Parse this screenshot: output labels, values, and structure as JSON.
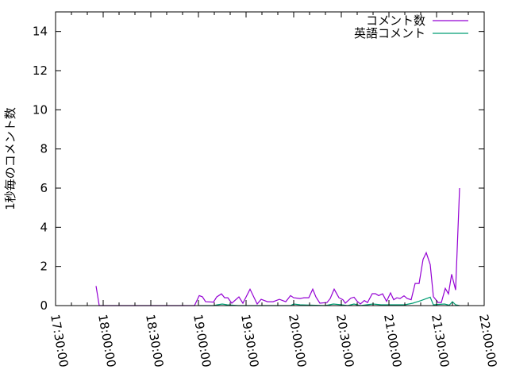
{
  "chart_data": {
    "type": "line",
    "title": "",
    "xlabel": "",
    "ylabel": "1秒毎のコメント数",
    "xlim": [
      "17:30:00",
      "22:00:00"
    ],
    "ylim": [
      0,
      15
    ],
    "xticks": [
      "17:30:00",
      "18:00:00",
      "18:30:00",
      "19:00:00",
      "19:30:00",
      "20:00:00",
      "20:30:00",
      "21:00:00",
      "21:30:00",
      "22:00:00"
    ],
    "yticks": [
      0,
      2,
      4,
      6,
      8,
      10,
      12,
      14
    ],
    "grid": false,
    "legend_position": "top-right",
    "series": [
      {
        "name": "コメント数",
        "color": "#9400d3",
        "points": [
          [
            "17:55:30",
            1.0
          ],
          [
            "17:57:30",
            0
          ],
          [
            "18:50:00",
            0
          ],
          [
            "18:57:30",
            0
          ],
          [
            "19:00:30",
            0.51
          ],
          [
            "19:02:30",
            0.45
          ],
          [
            "19:04:30",
            0.2
          ],
          [
            "19:09:30",
            0.18
          ],
          [
            "19:11:30",
            0.44
          ],
          [
            "19:14:30",
            0.6
          ],
          [
            "19:16:30",
            0.4
          ],
          [
            "19:18:30",
            0.4
          ],
          [
            "19:21:00",
            0.12
          ],
          [
            "19:25:30",
            0.44
          ],
          [
            "19:28:00",
            0.12
          ],
          [
            "19:32:30",
            0.84
          ],
          [
            "19:37:00",
            0.08
          ],
          [
            "19:39:30",
            0.32
          ],
          [
            "19:43:30",
            0.2
          ],
          [
            "19:47:00",
            0.2
          ],
          [
            "19:51:00",
            0.32
          ],
          [
            "19:55:00",
            0.2
          ],
          [
            "19:58:00",
            0.51
          ],
          [
            "20:00:00",
            0.4
          ],
          [
            "20:04:00",
            0.36
          ],
          [
            "20:06:30",
            0.4
          ],
          [
            "20:09:30",
            0.4
          ],
          [
            "20:12:00",
            0.84
          ],
          [
            "20:14:00",
            0.44
          ],
          [
            "20:16:30",
            0.12
          ],
          [
            "20:21:00",
            0.16
          ],
          [
            "20:23:00",
            0.36
          ],
          [
            "20:25:30",
            0.84
          ],
          [
            "20:28:30",
            0.4
          ],
          [
            "20:31:00",
            0.3
          ],
          [
            "20:32:30",
            0.12
          ],
          [
            "20:36:00",
            0.38
          ],
          [
            "20:38:00",
            0.43
          ],
          [
            "20:40:00",
            0.22
          ],
          [
            "20:42:00",
            0.08
          ],
          [
            "20:44:30",
            0.26
          ],
          [
            "20:46:30",
            0.16
          ],
          [
            "20:49:30",
            0.61
          ],
          [
            "20:51:30",
            0.61
          ],
          [
            "20:53:30",
            0.51
          ],
          [
            "20:56:00",
            0.6
          ],
          [
            "20:58:30",
            0.22
          ],
          [
            "21:01:00",
            0.65
          ],
          [
            "21:03:00",
            0.3
          ],
          [
            "21:05:00",
            0.4
          ],
          [
            "21:07:00",
            0.36
          ],
          [
            "21:09:30",
            0.5
          ],
          [
            "21:11:30",
            0.36
          ],
          [
            "21:14:00",
            0.3
          ],
          [
            "21:16:30",
            1.13
          ],
          [
            "21:19:00",
            1.13
          ],
          [
            "21:21:30",
            2.36
          ],
          [
            "21:23:30",
            2.7
          ],
          [
            "21:26:00",
            2.1
          ],
          [
            "21:28:00",
            0.46
          ],
          [
            "21:31:00",
            0.16
          ],
          [
            "21:33:00",
            0.16
          ],
          [
            "21:35:30",
            0.88
          ],
          [
            "21:37:30",
            0.6
          ],
          [
            "21:39:30",
            1.6
          ],
          [
            "21:42:00",
            0.8
          ],
          [
            "21:44:30",
            6.0
          ]
        ]
      },
      {
        "name": "英語コメント",
        "color": "#009e73",
        "points": [
          [
            "19:00:30",
            0
          ],
          [
            "19:09:30",
            0
          ],
          [
            "19:12:00",
            0.04
          ],
          [
            "19:15:00",
            0.08
          ],
          [
            "19:18:00",
            0.04
          ],
          [
            "19:25:00",
            0
          ],
          [
            "19:45:00",
            0
          ],
          [
            "19:58:00",
            0
          ],
          [
            "20:00:00",
            0.08
          ],
          [
            "20:04:00",
            0.04
          ],
          [
            "20:20:00",
            0
          ],
          [
            "20:25:00",
            0.08
          ],
          [
            "20:30:00",
            0.04
          ],
          [
            "20:34:00",
            0
          ],
          [
            "20:38:00",
            0.08
          ],
          [
            "20:42:00",
            0
          ],
          [
            "20:50:00",
            0.08
          ],
          [
            "20:55:00",
            0.04
          ],
          [
            "21:05:00",
            0.04
          ],
          [
            "21:10:00",
            0.04
          ],
          [
            "21:15:00",
            0.12
          ],
          [
            "21:20:00",
            0.25
          ],
          [
            "21:26:00",
            0.43
          ],
          [
            "21:28:00",
            0.04
          ],
          [
            "21:35:00",
            0.08
          ],
          [
            "21:38:00",
            0.02
          ],
          [
            "21:40:00",
            0.2
          ],
          [
            "21:42:00",
            0.04
          ],
          [
            "21:44:30",
            0
          ]
        ]
      }
    ]
  }
}
